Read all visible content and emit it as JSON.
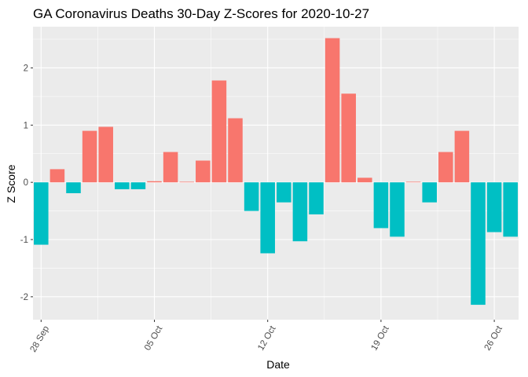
{
  "chart_data": {
    "type": "bar",
    "title": "GA Coronavirus Deaths 30-Day Z-Scores for 2020-10-27",
    "xlabel": "Date",
    "ylabel": "Z Score",
    "x_dates": [
      "2020-09-28",
      "2020-09-29",
      "2020-09-30",
      "2020-10-01",
      "2020-10-02",
      "2020-10-03",
      "2020-10-04",
      "2020-10-05",
      "2020-10-06",
      "2020-10-07",
      "2020-10-08",
      "2020-10-09",
      "2020-10-10",
      "2020-10-11",
      "2020-10-12",
      "2020-10-13",
      "2020-10-14",
      "2020-10-15",
      "2020-10-16",
      "2020-10-17",
      "2020-10-18",
      "2020-10-19",
      "2020-10-20",
      "2020-10-21",
      "2020-10-22",
      "2020-10-23",
      "2020-10-24",
      "2020-10-25",
      "2020-10-26",
      "2020-10-27"
    ],
    "values": [
      -1.09,
      0.23,
      -0.19,
      0.9,
      0.97,
      -0.12,
      -0.12,
      0.02,
      0.53,
      0.01,
      0.38,
      1.78,
      1.12,
      -0.5,
      -1.24,
      -0.35,
      -1.03,
      -0.56,
      2.52,
      1.55,
      0.08,
      -0.8,
      -0.95,
      0.01,
      -0.35,
      0.53,
      0.9,
      -2.14,
      -0.87,
      -0.95
    ],
    "x_ticks": [
      "28 Sep",
      "05 Oct",
      "12 Oct",
      "19 Oct",
      "26 Oct"
    ],
    "y_ticks": [
      "2",
      "1",
      "0",
      "-1",
      "-2"
    ],
    "ylim": [
      -2.4,
      2.72
    ],
    "grid": true,
    "legend": "none",
    "colors": {
      "positive": "#F8766D",
      "negative": "#00BFC4",
      "panel": "#EBEBEB",
      "gridline": "#FFFFFF"
    }
  }
}
